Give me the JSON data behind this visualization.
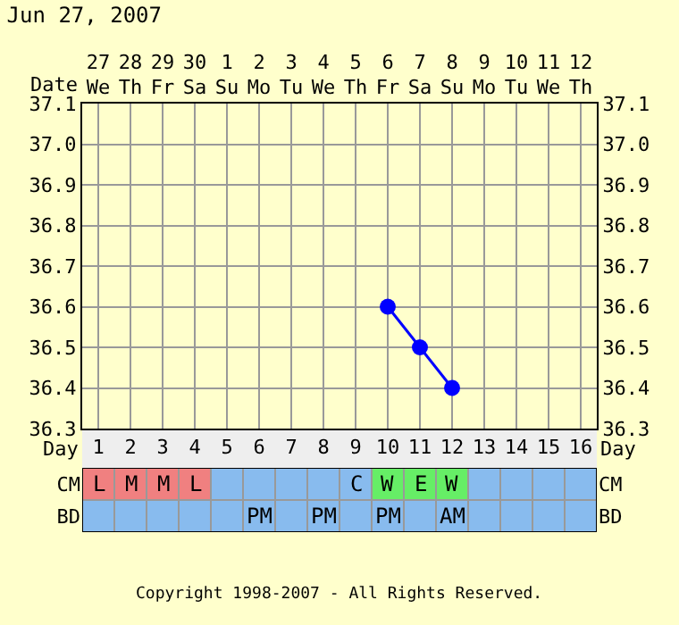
{
  "chart_data": [
    {
      "type": "line",
      "title": "Jun 27, 2007",
      "xlabel": "Day",
      "x2label": "Date",
      "xlim": [
        0.5,
        16.5
      ],
      "xticks": [
        1,
        2,
        3,
        4,
        5,
        6,
        7,
        8,
        9,
        10,
        11,
        12,
        13,
        14,
        15,
        16
      ],
      "x2lim": [
        "2007-06-26T12:00",
        "2007-07-12T12:00"
      ],
      "x2ticks": [
        {
          "value": "2007-06-27",
          "label": "27\nWe"
        },
        {
          "value": "2007-06-28",
          "label": "28\nTh"
        },
        {
          "value": "2007-06-29",
          "label": "29\nFr"
        },
        {
          "value": "2007-06-30",
          "label": "30\nSa"
        },
        {
          "value": "2007-07-01",
          "label": "1\nSu"
        },
        {
          "value": "2007-07-02",
          "label": "2\nMo"
        },
        {
          "value": "2007-07-03",
          "label": "3\nTu"
        },
        {
          "value": "2007-07-04",
          "label": "4\nWe"
        },
        {
          "value": "2007-07-05",
          "label": "5\nTh"
        },
        {
          "value": "2007-07-06",
          "label": "6\nFr"
        },
        {
          "value": "2007-07-07",
          "label": "7\nSa"
        },
        {
          "value": "2007-07-08",
          "label": "8\nSu"
        },
        {
          "value": "2007-07-09",
          "label": "9\nMo"
        },
        {
          "value": "2007-07-10",
          "label": "10\nTu"
        },
        {
          "value": "2007-07-11",
          "label": "11\nWe"
        },
        {
          "value": "2007-07-12",
          "label": "12\nTh"
        }
      ],
      "ylim": [
        36.3,
        37.1
      ],
      "yticks": [
        36.3,
        36.4,
        36.5,
        36.6,
        36.7,
        36.8,
        36.9,
        {
          "value": 37.0,
          "label": "37.0"
        },
        37.1
      ],
      "y2lim": [
        36.3,
        37.1
      ],
      "y2ticks": [
        36.3,
        36.4,
        36.5,
        36.6,
        36.7,
        36.8,
        36.9,
        {
          "value": 37.0,
          "label": "37.0"
        },
        37.1
      ],
      "grid": true,
      "marker": "circle",
      "line_style": "solid",
      "series": [
        {
          "color": "#0000ff",
          "x": [
            10,
            11,
            12
          ],
          "values": [
            36.6,
            36.5,
            36.4
          ]
        }
      ]
    },
    {
      "type": "heatmap",
      "categories": [
        null,
        null,
        null,
        null,
        null,
        null,
        null,
        null,
        null,
        null,
        null,
        null,
        null,
        null,
        null,
        null
      ],
      "y_categories": [
        "CM",
        "BD"
      ],
      "y2_categories": [
        "CM",
        "BD"
      ],
      "tick_labels": "y",
      "cells": [
        [
          null,
          null,
          null,
          null,
          null,
          null,
          null,
          null,
          null,
          null,
          null,
          null,
          null,
          null,
          null,
          null
        ],
        [
          null,
          null,
          null,
          null,
          null,
          null,
          null,
          null,
          null,
          null,
          null,
          null,
          null,
          null,
          null,
          null
        ]
      ],
      "cell_labels": [
        [
          "L",
          "M",
          "M",
          "L",
          null,
          null,
          null,
          null,
          "C",
          "W",
          "E",
          "W",
          null,
          null,
          null,
          null
        ],
        [
          null,
          null,
          null,
          null,
          null,
          "PM",
          null,
          "PM",
          null,
          "PM",
          null,
          "AM",
          null,
          null,
          null,
          null
        ]
      ],
      "colors": [
        [
          "#f08080",
          "#f08080",
          "#f08080",
          "#f08080",
          "#88bbee",
          "#88bbee",
          "#88bbee",
          "#88bbee",
          "#88bbee",
          "#66ee66",
          "#66ee66",
          "#66ee66",
          "#88bbee",
          "#88bbee",
          "#88bbee",
          "#88bbee"
        ],
        [
          "#88bbee",
          "#88bbee",
          "#88bbee",
          "#88bbee",
          "#88bbee",
          "#88bbee",
          "#88bbee",
          "#88bbee",
          "#88bbee",
          "#88bbee",
          "#88bbee",
          "#88bbee",
          "#88bbee",
          "#88bbee",
          "#88bbee",
          "#88bbee"
        ]
      ],
      "annotations": [
        "Copyright 1998-2007 - All Rights Reserved."
      ]
    }
  ]
}
